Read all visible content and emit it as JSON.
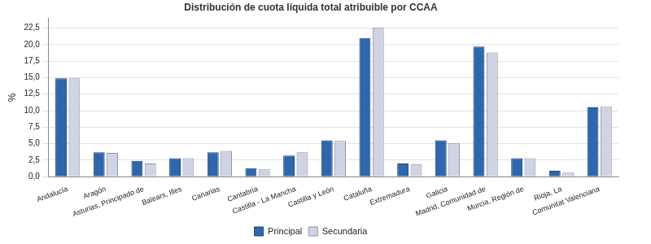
{
  "chart_data": {
    "type": "bar",
    "title": "Distribución de cuota líquida total atribuible por CCAA",
    "y_label": "%",
    "categories": [
      "Andalucía",
      "Aragón",
      "Asturias, Principado de",
      "Balears, Illes",
      "Canarias",
      "Cantabria",
      "Castilla - La Mancha",
      "Castilla y León",
      "Cataluña",
      "Extremadura",
      "Galicia",
      "Madrid, Comunidad de",
      "Murcia, Región de",
      "Rioja, La",
      "Comunitat Valenciana"
    ],
    "series": [
      {
        "name": "Principal",
        "color": "#2e67ad",
        "values": [
          14.9,
          3.7,
          2.4,
          2.8,
          3.7,
          1.3,
          3.2,
          5.5,
          21.0,
          2.0,
          5.5,
          19.7,
          2.8,
          0.9,
          10.5
        ]
      },
      {
        "name": "Secundaria",
        "color": "#cfd3e3",
        "values": [
          14.9,
          3.6,
          2.0,
          2.8,
          3.9,
          1.1,
          3.7,
          5.4,
          22.6,
          1.9,
          5.1,
          18.8,
          2.8,
          0.6,
          10.6
        ]
      }
    ],
    "ylim": [
      0,
      24
    ],
    "yticks": [
      {
        "value": 0,
        "label": "0,0"
      },
      {
        "value": 2.5,
        "label": "2,5"
      },
      {
        "value": 5,
        "label": "5,0"
      },
      {
        "value": 7.5,
        "label": "7,5"
      },
      {
        "value": 10,
        "label": "10,0"
      },
      {
        "value": 12.5,
        "label": "12,5"
      },
      {
        "value": 15,
        "label": "15,0"
      },
      {
        "value": 17.5,
        "label": "17,5"
      },
      {
        "value": 20,
        "label": "20,0"
      },
      {
        "value": 22.5,
        "label": "22,5"
      }
    ],
    "grid": true,
    "legend": "bottom"
  }
}
